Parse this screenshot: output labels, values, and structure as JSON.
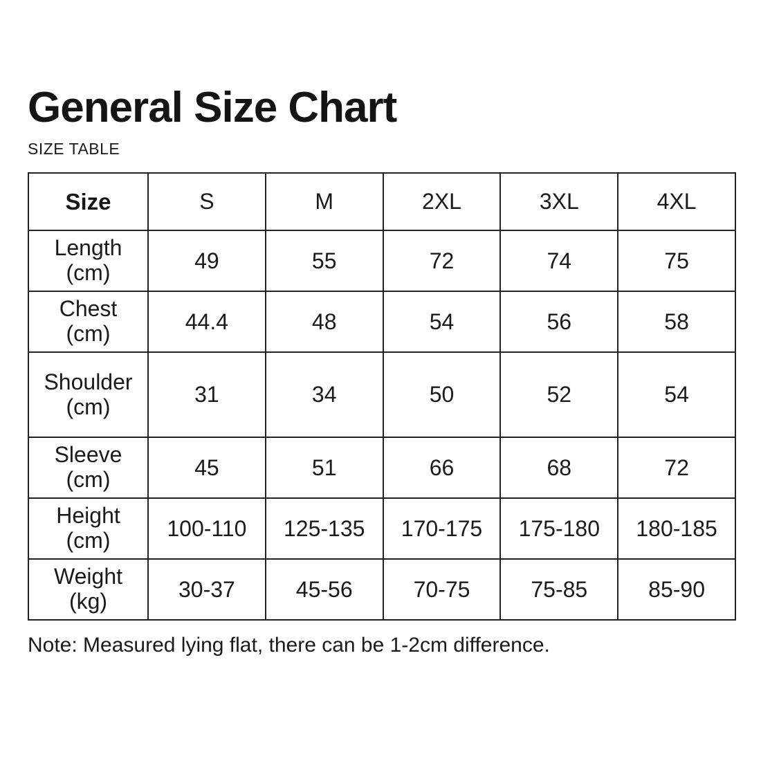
{
  "page": {
    "title": "General Size Chart",
    "subtitle": "SIZE TABLE",
    "note": "Note: Measured lying flat, there can be 1-2cm difference."
  },
  "colors": {
    "background": "#ffffff",
    "text": "#1a1a1a",
    "table_border": "#222222"
  },
  "chart_data": {
    "type": "table",
    "title": "General Size Chart",
    "columns": [
      "Size",
      "S",
      "M",
      "2XL",
      "3XL",
      "4XL"
    ],
    "rows": [
      {
        "label": "Length",
        "unit": "(cm)",
        "values": [
          "49",
          "55",
          "72",
          "74",
          "75"
        ]
      },
      {
        "label": "Chest",
        "unit": "(cm)",
        "values": [
          "44.4",
          "48",
          "54",
          "56",
          "58"
        ]
      },
      {
        "label": "Shoulder",
        "unit": "(cm)",
        "values": [
          "31",
          "34",
          "50",
          "52",
          "54"
        ]
      },
      {
        "label": "Sleeve",
        "unit": "(cm)",
        "values": [
          "45",
          "51",
          "66",
          "68",
          "72"
        ]
      },
      {
        "label": "Height",
        "unit": "(cm)",
        "values": [
          "100-110",
          "125-135",
          "170-175",
          "175-180",
          "180-185"
        ]
      },
      {
        "label": "Weight",
        "unit": "(kg)",
        "values": [
          "30-37",
          "45-56",
          "70-75",
          "75-85",
          "85-90"
        ]
      }
    ]
  }
}
